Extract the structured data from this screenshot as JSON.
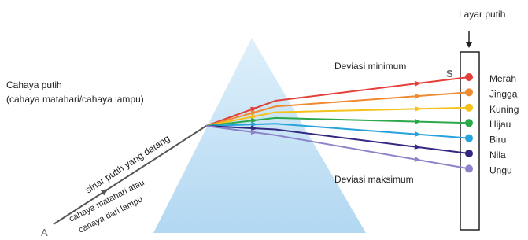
{
  "screen": {
    "title": "Layar putih",
    "point": "S"
  },
  "incident": {
    "title": "Cahaya putih",
    "subtitle": "(cahaya matahari/cahaya lampu)",
    "ray_label": "sinar putih yang datang",
    "source_line1": "cahaya matahari atau",
    "source_line2": "cahaya dari lampu",
    "start": "A"
  },
  "deviation": {
    "minimum": "Deviasi minimum",
    "maximum": "Deviasi maksimum"
  },
  "colors": [
    "Merah",
    "Jingga",
    "Kuning",
    "Hijau",
    "Biru",
    "Nila",
    "Ungu"
  ]
}
